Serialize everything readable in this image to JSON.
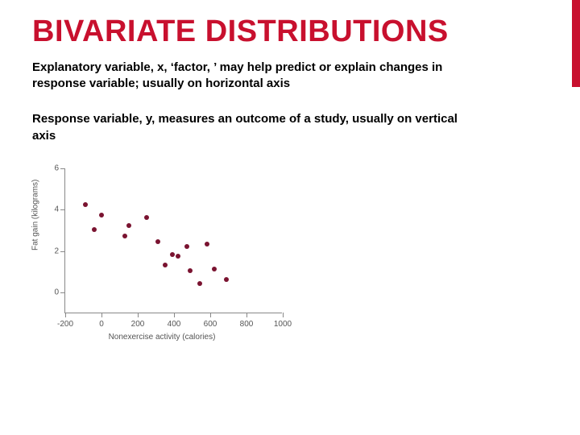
{
  "title": "BIVARIATE DISTRIBUTIONS",
  "paragraph1": "Explanatory variable, x, ‘factor, ’ may help predict or explain changes in response variable; usually on horizontal axis",
  "paragraph2": "Response variable, y, measures an outcome of a study, usually on vertical axis",
  "accent_color": "#c8102e",
  "chart": {
    "type": "scatter",
    "xlabel": "Nonexercise activity (calories)",
    "ylabel": "Fat gain (kilograms)",
    "xlim": [
      -200,
      1000
    ],
    "ylim": [
      -1,
      6
    ],
    "xticks": [
      -200,
      0,
      200,
      400,
      600,
      800,
      1000
    ],
    "yticks": [
      0,
      2,
      4,
      6
    ],
    "background_color": "#ffffff",
    "axis_color": "#888888",
    "tick_label_fontsize": 10,
    "axis_label_fontsize": 10,
    "marker_color": "#7a1330",
    "marker_size": 6,
    "points": [
      {
        "x": -90,
        "y": 4.2
      },
      {
        "x": -40,
        "y": 3.0
      },
      {
        "x": 0,
        "y": 3.7
      },
      {
        "x": 130,
        "y": 2.7
      },
      {
        "x": 150,
        "y": 3.2
      },
      {
        "x": 250,
        "y": 3.6
      },
      {
        "x": 310,
        "y": 2.4
      },
      {
        "x": 350,
        "y": 1.3
      },
      {
        "x": 390,
        "y": 1.8
      },
      {
        "x": 420,
        "y": 1.7
      },
      {
        "x": 470,
        "y": 2.2
      },
      {
        "x": 490,
        "y": 1.0
      },
      {
        "x": 540,
        "y": 0.4
      },
      {
        "x": 580,
        "y": 2.3
      },
      {
        "x": 620,
        "y": 1.1
      },
      {
        "x": 690,
        "y": 0.6
      }
    ]
  }
}
